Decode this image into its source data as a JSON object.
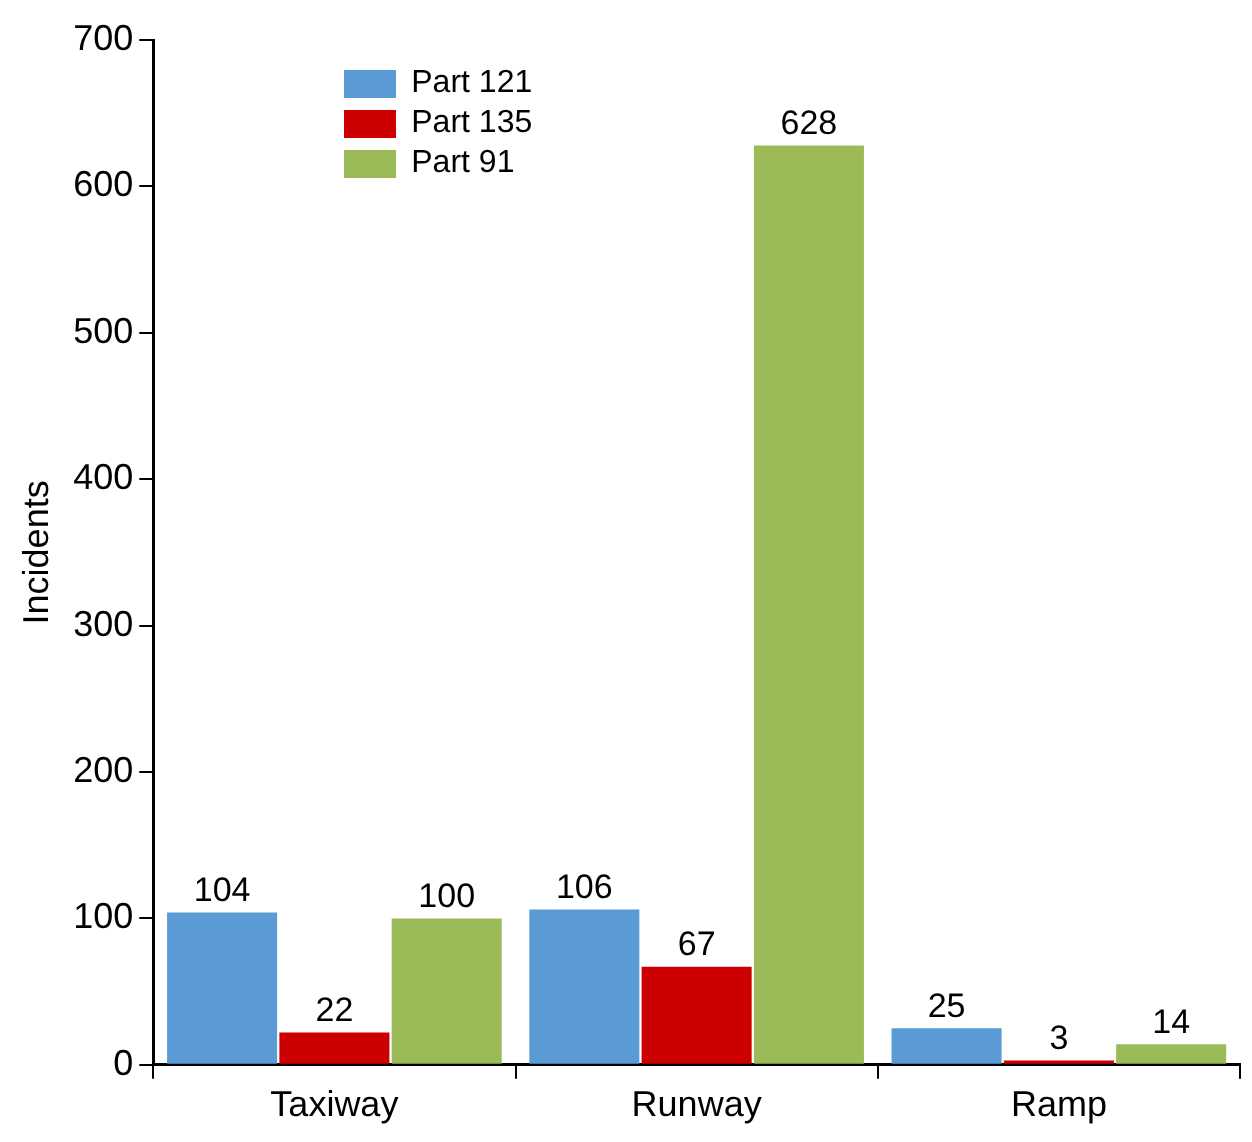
{
  "chart_data": {
    "type": "bar",
    "ylabel": "Incidents",
    "categories": [
      "Taxiway",
      "Runway",
      "Ramp"
    ],
    "series": [
      {
        "name": "Part 121",
        "color": "#5b9bd5",
        "values": [
          104,
          106,
          25
        ]
      },
      {
        "name": "Part 135",
        "color": "#cc0000",
        "values": [
          22,
          67,
          3
        ]
      },
      {
        "name": "Part 91",
        "color": "#9bbb59",
        "values": [
          100,
          628,
          14
        ]
      }
    ],
    "ylim": [
      0,
      700
    ],
    "yticks": [
      0,
      100,
      200,
      300,
      400,
      500,
      600,
      700
    ],
    "grid": false,
    "legend": "top left",
    "data_labels": true
  }
}
